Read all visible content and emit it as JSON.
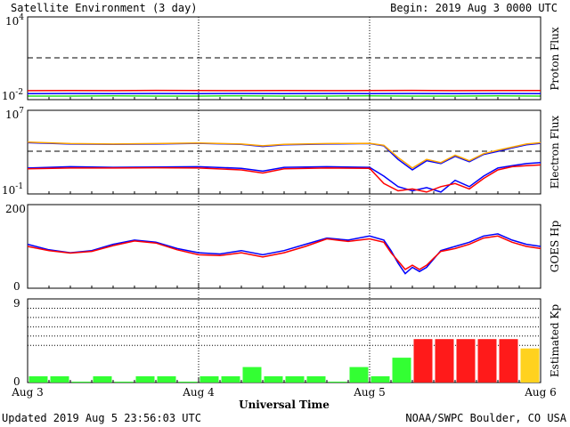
{
  "header": {
    "title": "Satellite Environment (3 day)",
    "begin": "Begin:  2019 Aug 3 0000 UTC"
  },
  "footer": {
    "updated": "Updated 2019 Aug  5 23:56:03 UTC",
    "credit": "NOAA/SWPC Boulder, CO USA"
  },
  "xaxis": {
    "title": "Universal Time",
    "ticks": [
      "Aug 3",
      "Aug 4",
      "Aug 5",
      "Aug 6"
    ]
  },
  "panels": {
    "proton": {
      "ylabel": "Proton Flux",
      "ytick_top_base": "10",
      "ytick_top_exp": "4",
      "ytick_bot_base": "10",
      "ytick_bot_exp": "-2"
    },
    "electron": {
      "ylabel": "Electron Flux",
      "ytick_top_base": "10",
      "ytick_top_exp": "7",
      "ytick_bot_base": "10",
      "ytick_bot_exp": "-1"
    },
    "hp": {
      "ylabel": "GOES Hp",
      "ytick_top": "200",
      "ytick_bot": "0"
    },
    "kp": {
      "ylabel": "Estimated Kp",
      "ytick_top": "9",
      "ytick_bot": "0"
    }
  },
  "colors": {
    "red": "#ff0000",
    "blue": "#0000ff",
    "green": "#22dd22",
    "orange": "#ffa500",
    "kp_quiet": "#33ff33",
    "kp_storm": "#ff1a1a",
    "kp_active": "#ffd21f"
  },
  "chart_data": [
    {
      "type": "line",
      "panel": "Proton Flux",
      "yscale": "log",
      "ylim": [
        0.01,
        10000
      ],
      "x_unit": "hours since 2019 Aug 3 0000 UTC",
      "xlim": [
        0,
        72
      ],
      "threshold": 10,
      "series": [
        {
          "color": "red",
          "x": [
            0,
            6,
            12,
            18,
            24,
            30,
            36,
            42,
            48,
            54,
            60,
            66,
            72
          ],
          "y": [
            0.045,
            0.046,
            0.045,
            0.047,
            0.046,
            0.045,
            0.046,
            0.045,
            0.046,
            0.047,
            0.045,
            0.046,
            0.046
          ]
        },
        {
          "color": "blue",
          "x": [
            0,
            6,
            12,
            18,
            24,
            30,
            36,
            42,
            48,
            54,
            60,
            66,
            72
          ],
          "y": [
            0.027,
            0.028,
            0.027,
            0.028,
            0.027,
            0.028,
            0.027,
            0.028,
            0.027,
            0.028,
            0.027,
            0.028,
            0.027
          ]
        },
        {
          "color": "green",
          "x": [
            0,
            6,
            12,
            18,
            24,
            30,
            36,
            42,
            48,
            54,
            60,
            66,
            72
          ],
          "y": [
            0.018,
            0.018,
            0.019,
            0.018,
            0.018,
            0.019,
            0.018,
            0.018,
            0.019,
            0.018,
            0.018,
            0.019,
            0.018
          ]
        }
      ]
    },
    {
      "type": "line",
      "panel": "Electron Flux",
      "yscale": "log",
      "ylim": [
        0.1,
        10000000
      ],
      "xlim": [
        0,
        72
      ],
      "threshold": 1000,
      "series": [
        {
          "color": "blue",
          "x": [
            0,
            6,
            12,
            18,
            24,
            30,
            33,
            36,
            42,
            48,
            50,
            52,
            54,
            56,
            58,
            60,
            62,
            64,
            66,
            68,
            70,
            72
          ],
          "y": [
            8000,
            6000,
            5500,
            6000,
            7000,
            5500,
            3500,
            5000,
            6000,
            6500,
            4000,
            200,
            20,
            150,
            80,
            400,
            120,
            600,
            1200,
            2500,
            5000,
            7000
          ]
        },
        {
          "color": "orange",
          "x": [
            0,
            6,
            12,
            18,
            24,
            30,
            33,
            36,
            42,
            48,
            50,
            52,
            54,
            56,
            58,
            60,
            62,
            64,
            66,
            68,
            70,
            72
          ],
          "y": [
            9000,
            6500,
            6000,
            6500,
            7500,
            6000,
            4000,
            5500,
            6500,
            7000,
            4500,
            300,
            30,
            200,
            100,
            500,
            150,
            700,
            1500,
            3000,
            6000,
            8000
          ]
        },
        {
          "color": "blue",
          "x": [
            0,
            6,
            12,
            18,
            24,
            30,
            33,
            36,
            42,
            48,
            50,
            52,
            54,
            56,
            58,
            60,
            62,
            64,
            66,
            68,
            70,
            72
          ],
          "y": [
            30,
            40,
            35,
            38,
            40,
            28,
            15,
            35,
            40,
            35,
            5,
            0.5,
            0.2,
            0.4,
            0.15,
            2,
            0.5,
            5,
            30,
            50,
            80,
            100
          ]
        },
        {
          "color": "red",
          "x": [
            0,
            6,
            12,
            18,
            24,
            30,
            33,
            36,
            42,
            48,
            50,
            52,
            54,
            56,
            58,
            60,
            62,
            64,
            66,
            68,
            70,
            72
          ],
          "y": [
            25,
            30,
            30,
            32,
            30,
            20,
            10,
            25,
            30,
            28,
            1,
            0.2,
            0.3,
            0.15,
            0.5,
            1,
            0.3,
            3,
            20,
            40,
            50,
            60
          ]
        }
      ]
    },
    {
      "type": "line",
      "panel": "GOES Hp",
      "ylim": [
        0,
        200
      ],
      "xlim": [
        0,
        72
      ],
      "series": [
        {
          "color": "blue",
          "x": [
            0,
            3,
            6,
            9,
            12,
            15,
            18,
            21,
            24,
            27,
            30,
            33,
            36,
            39,
            42,
            45,
            48,
            50,
            51,
            52,
            53,
            54,
            55,
            56,
            57,
            58,
            60,
            62,
            64,
            66,
            68,
            70,
            72
          ],
          "y": [
            105,
            92,
            85,
            90,
            105,
            115,
            110,
            95,
            85,
            82,
            90,
            80,
            90,
            105,
            120,
            115,
            125,
            115,
            90,
            60,
            35,
            50,
            40,
            50,
            70,
            90,
            100,
            110,
            125,
            130,
            115,
            105,
            100
          ]
        },
        {
          "color": "red",
          "x": [
            0,
            3,
            6,
            9,
            12,
            15,
            18,
            21,
            24,
            27,
            30,
            33,
            36,
            39,
            42,
            45,
            48,
            50,
            51,
            52,
            53,
            54,
            55,
            56,
            57,
            58,
            60,
            62,
            64,
            66,
            68,
            70,
            72
          ],
          "y": [
            100,
            90,
            84,
            88,
            102,
            113,
            108,
            92,
            80,
            78,
            85,
            75,
            85,
            100,
            118,
            112,
            118,
            110,
            85,
            65,
            45,
            55,
            45,
            55,
            72,
            88,
            95,
            105,
            120,
            125,
            110,
            100,
            95
          ]
        }
      ]
    },
    {
      "type": "bar",
      "panel": "Estimated Kp",
      "ylim": [
        0,
        9
      ],
      "bar_hours": 3,
      "thresholds": [
        4,
        5,
        6,
        7,
        8
      ],
      "values": [
        0.67,
        0.67,
        0.1,
        0.67,
        0.1,
        0.67,
        0.67,
        0.1,
        0.67,
        0.67,
        1.67,
        0.67,
        0.67,
        0.67,
        0.1,
        1.67,
        0.67,
        2.67,
        4.67,
        4.67,
        4.67,
        4.67,
        4.67,
        3.67
      ],
      "colors": [
        "kp_quiet",
        "kp_quiet",
        "kp_quiet",
        "kp_quiet",
        "kp_quiet",
        "kp_quiet",
        "kp_quiet",
        "kp_quiet",
        "kp_quiet",
        "kp_quiet",
        "kp_quiet",
        "kp_quiet",
        "kp_quiet",
        "kp_quiet",
        "kp_quiet",
        "kp_quiet",
        "kp_quiet",
        "kp_quiet",
        "kp_storm",
        "kp_storm",
        "kp_storm",
        "kp_storm",
        "kp_storm",
        "kp_active"
      ]
    }
  ]
}
